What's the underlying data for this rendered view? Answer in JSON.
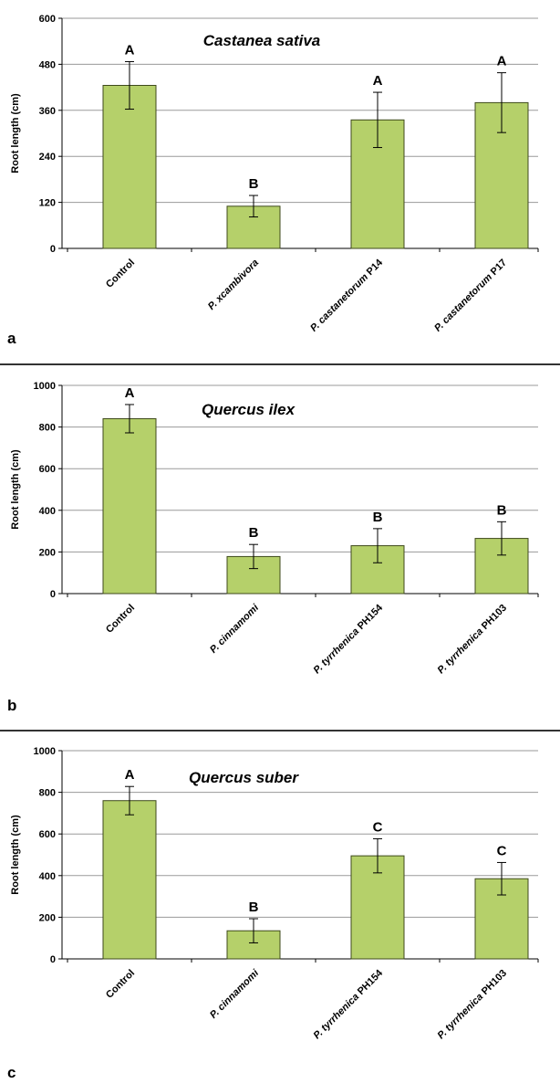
{
  "colors": {
    "bar_fill": "#b5d06a",
    "bar_stroke": "#3f4a1c",
    "gridline": "#9a9a9a",
    "axis": "#000000",
    "separator": "#333333"
  },
  "chart_data": [
    {
      "type": "bar",
      "panel_label": "a",
      "title": "Castanea sativa",
      "ylabel": "Root length (cm)",
      "xlabel": "",
      "ylim": [
        0,
        600
      ],
      "yticks": [
        0,
        120,
        240,
        360,
        480,
        600
      ],
      "grid": true,
      "categories": [
        {
          "italic": "",
          "rest": "Control"
        },
        {
          "italic": "P. xcambivora",
          "rest": ""
        },
        {
          "italic": "P. castanetorum",
          "rest": " P14"
        },
        {
          "italic": "P. castanetorum",
          "rest": " P17"
        }
      ],
      "values": [
        425,
        110,
        335,
        380
      ],
      "errors": [
        62,
        28,
        72,
        78
      ],
      "significance": [
        "A",
        "B",
        "A",
        "A"
      ]
    },
    {
      "type": "bar",
      "panel_label": "b",
      "title": "Quercus ilex",
      "ylabel": "Root length (cm)",
      "xlabel": "",
      "ylim": [
        0,
        1000
      ],
      "yticks": [
        0,
        200,
        400,
        600,
        800,
        1000
      ],
      "grid": true,
      "categories": [
        {
          "italic": "",
          "rest": "Control"
        },
        {
          "italic": "P. cinnamomi",
          "rest": ""
        },
        {
          "italic": "P. tyrrhenica",
          "rest": " PH154"
        },
        {
          "italic": "P. tyrrhenica",
          "rest": " PH103"
        }
      ],
      "values": [
        840,
        178,
        230,
        265
      ],
      "errors": [
        68,
        58,
        82,
        80
      ],
      "significance": [
        "A",
        "B",
        "B",
        "B"
      ]
    },
    {
      "type": "bar",
      "panel_label": "c",
      "title": "Quercus suber",
      "ylabel": "Root length (cm)",
      "xlabel": "",
      "ylim": [
        0,
        1000
      ],
      "yticks": [
        0,
        200,
        400,
        600,
        800,
        1000
      ],
      "grid": true,
      "categories": [
        {
          "italic": "",
          "rest": "Control"
        },
        {
          "italic": "P. cinnamomi",
          "rest": ""
        },
        {
          "italic": "P. tyrrhenica",
          "rest": " PH154"
        },
        {
          "italic": "P. tyrrhenica",
          "rest": " PH103"
        }
      ],
      "values": [
        760,
        135,
        495,
        385
      ],
      "errors": [
        68,
        58,
        82,
        78
      ],
      "significance": [
        "A",
        "B",
        "C",
        "C"
      ]
    }
  ]
}
